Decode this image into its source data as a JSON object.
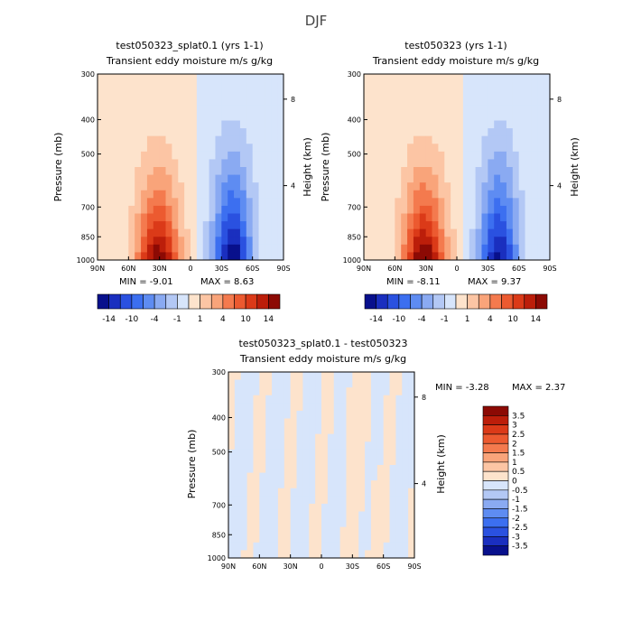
{
  "page_title": "DJF",
  "colors": {
    "neg": [
      "#08108c",
      "#1a2fbf",
      "#2a51e0",
      "#3c6ff0",
      "#5e8cf2",
      "#8aaaf2",
      "#b3c8f5",
      "#d7e5fb"
    ],
    "pos": [
      "#fde3cc",
      "#fcc5a4",
      "#f9a47a",
      "#f47a4e",
      "#ec5a30",
      "#db3a18",
      "#bc1e0a",
      "#8c0a04"
    ],
    "diff_neg": [
      "#d7e5fb",
      "#b3c8f5",
      "#8aaaf2",
      "#5e8cf2",
      "#3c6ff0",
      "#2a51e0",
      "#1a2fbf",
      "#08108c"
    ],
    "diff_pos": [
      "#fde3cc",
      "#fcc5a4",
      "#f9a47a",
      "#f47a4e",
      "#ec5a30",
      "#db3a18",
      "#bc1e0a",
      "#8c0a04"
    ]
  },
  "chart_data": [
    {
      "type": "heatmap",
      "title": "test050323_splat0.1 (yrs 1-1)",
      "subtitle": "Transient eddy moisture m/s g/kg",
      "xlabel": "",
      "ylabel": "Pressure (mb)",
      "y2label": "Height (km)",
      "x_ticks": [
        "90N",
        "60N",
        "30N",
        "0",
        "30S",
        "60S",
        "90S"
      ],
      "y_ticks": [
        "300",
        "400",
        "500",
        "700",
        "850",
        "1000"
      ],
      "y2_ticks": [
        "8",
        "4"
      ],
      "min_label": "MIN = -9.01",
      "max_label": "MAX = 8.63",
      "min": -9.01,
      "max": 8.63,
      "ylim": [
        1000,
        300
      ],
      "xlim": [
        "90N",
        "90S"
      ],
      "colorbar_labels": [
        "-14",
        "-10",
        "-4",
        "-1",
        "1",
        "4",
        "10",
        "14"
      ]
    },
    {
      "type": "heatmap",
      "title": "test050323 (yrs 1-1)",
      "subtitle": "Transient eddy moisture m/s g/kg",
      "xlabel": "",
      "ylabel": "Pressure (mb)",
      "y2label": "Height (km)",
      "x_ticks": [
        "90N",
        "60N",
        "30N",
        "0",
        "30S",
        "60S",
        "90S"
      ],
      "y_ticks": [
        "300",
        "400",
        "500",
        "700",
        "850",
        "1000"
      ],
      "y2_ticks": [
        "8",
        "4"
      ],
      "min_label": "MIN = -8.11",
      "max_label": "MAX = 9.37",
      "min": -8.11,
      "max": 9.37,
      "ylim": [
        1000,
        300
      ],
      "xlim": [
        "90N",
        "90S"
      ],
      "colorbar_labels": [
        "-14",
        "-10",
        "-4",
        "-1",
        "1",
        "4",
        "10",
        "14"
      ]
    },
    {
      "type": "heatmap",
      "title": "test050323_splat0.1 - test050323",
      "subtitle": "Transient eddy moisture m/s g/kg",
      "xlabel": "",
      "ylabel": "Pressure (mb)",
      "y2label": "Height (km)",
      "x_ticks": [
        "90N",
        "60N",
        "30N",
        "0",
        "30S",
        "60S",
        "90S"
      ],
      "y_ticks": [
        "300",
        "400",
        "500",
        "700",
        "850",
        "1000"
      ],
      "y2_ticks": [
        "8",
        "4"
      ],
      "min_label": "MIN = -3.28",
      "max_label": "MAX = 2.37",
      "min": -3.28,
      "max": 2.37,
      "ylim": [
        1000,
        300
      ],
      "xlim": [
        "90N",
        "90S"
      ],
      "colorbar_labels": [
        "3.5",
        "3",
        "2.5",
        "2",
        "1.5",
        "1",
        "0.5",
        "0",
        "-0.5",
        "-1",
        "-1.5",
        "-2",
        "-2.5",
        "-3",
        "-3.5"
      ]
    }
  ]
}
